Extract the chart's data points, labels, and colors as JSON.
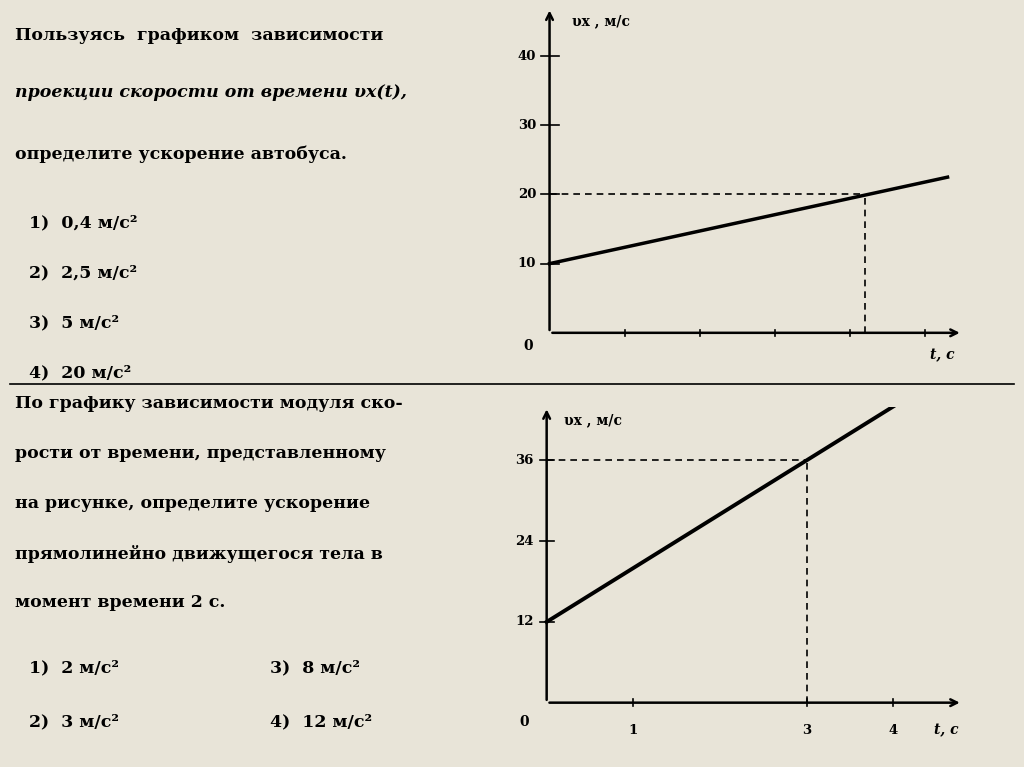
{
  "bg_color": "#e8e4d8",
  "divider_color": "#000000",
  "top_question": [
    "Пользуясь  графиком  зависимости",
    "проекции скорости от времени υx(t),",
    "определите ускорение автобуса."
  ],
  "top_italic_line": 1,
  "top_answers": [
    "1)  0,4 м/с²",
    "2)  2,5 м/с²",
    "3)  5 м/с²",
    "4)  20 м/с²"
  ],
  "bottom_question": [
    "По графику зависимости модуля ско-",
    "рости от времени, представленному",
    "на рисунке, определите ускорение",
    "прямолинейно движущегося тела в",
    "момент времени 2 с."
  ],
  "bottom_answers_left": [
    "1)  2 м/с²",
    "2)  3 м/с²"
  ],
  "bottom_answers_right": [
    "3)  8 м/с²",
    "4)  12 м/с²"
  ],
  "graph1": {
    "ylabel": "υx , м/с",
    "xlabel": "t, с",
    "yticks": [
      10,
      20,
      30,
      40
    ],
    "xlim": [
      0,
      5.5
    ],
    "ylim": [
      0,
      47
    ],
    "line_x": [
      0,
      5.3
    ],
    "line_y": [
      10,
      22.5
    ],
    "dashed_x": 4.2,
    "dashed_y": 20
  },
  "graph2": {
    "ylabel": "υx , м/с",
    "xlabel": "t, с",
    "yticks": [
      12,
      24,
      36
    ],
    "xticks": [
      1,
      3,
      4
    ],
    "xlim": [
      0,
      4.8
    ],
    "ylim": [
      0,
      44
    ],
    "line_x": [
      0,
      4.0
    ],
    "line_y": [
      12,
      44
    ],
    "dashed_x": 3,
    "dashed_y": 36
  }
}
